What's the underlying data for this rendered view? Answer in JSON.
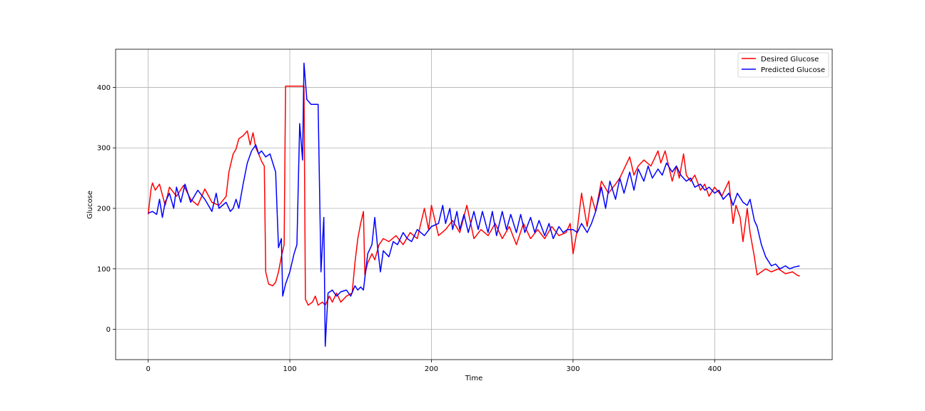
{
  "chart_data": {
    "type": "line",
    "xlabel": "Time",
    "ylabel": "Glucose",
    "xlim": [
      -23,
      483
    ],
    "ylim": [
      -50,
      463
    ],
    "xticks": [
      0,
      100,
      200,
      300,
      400
    ],
    "yticks": [
      0,
      100,
      200,
      300,
      400
    ],
    "grid": true,
    "legend_position": "top-right",
    "series": [
      {
        "name": "Desired Glucose",
        "color": "#ff0000",
        "points": [
          [
            0,
            190
          ],
          [
            2,
            232
          ],
          [
            3,
            242
          ],
          [
            5,
            230
          ],
          [
            8,
            240
          ],
          [
            12,
            205
          ],
          [
            15,
            235
          ],
          [
            20,
            220
          ],
          [
            25,
            238
          ],
          [
            30,
            215
          ],
          [
            35,
            205
          ],
          [
            40,
            232
          ],
          [
            45,
            210
          ],
          [
            50,
            205
          ],
          [
            55,
            220
          ],
          [
            57,
            260
          ],
          [
            60,
            290
          ],
          [
            62,
            298
          ],
          [
            64,
            315
          ],
          [
            67,
            320
          ],
          [
            70,
            328
          ],
          [
            72,
            305
          ],
          [
            74,
            325
          ],
          [
            76,
            300
          ],
          [
            78,
            290
          ],
          [
            80,
            278
          ],
          [
            82,
            270
          ],
          [
            83,
            95
          ],
          [
            85,
            75
          ],
          [
            88,
            72
          ],
          [
            90,
            78
          ],
          [
            92,
            95
          ],
          [
            94,
            120
          ],
          [
            96,
            140
          ],
          [
            97,
            402
          ],
          [
            100,
            402
          ],
          [
            105,
            402
          ],
          [
            108,
            402
          ],
          [
            110,
            402
          ],
          [
            111,
            50
          ],
          [
            113,
            40
          ],
          [
            116,
            45
          ],
          [
            118,
            55
          ],
          [
            120,
            40
          ],
          [
            123,
            45
          ],
          [
            125,
            40
          ],
          [
            128,
            55
          ],
          [
            130,
            45
          ],
          [
            133,
            60
          ],
          [
            136,
            45
          ],
          [
            140,
            55
          ],
          [
            144,
            60
          ],
          [
            146,
            110
          ],
          [
            148,
            150
          ],
          [
            150,
            175
          ],
          [
            152,
            195
          ],
          [
            153,
            90
          ],
          [
            155,
            110
          ],
          [
            158,
            125
          ],
          [
            160,
            115
          ],
          [
            163,
            140
          ],
          [
            166,
            150
          ],
          [
            170,
            145
          ],
          [
            175,
            155
          ],
          [
            180,
            140
          ],
          [
            185,
            160
          ],
          [
            190,
            150
          ],
          [
            195,
            200
          ],
          [
            198,
            165
          ],
          [
            200,
            205
          ],
          [
            205,
            155
          ],
          [
            210,
            165
          ],
          [
            215,
            180
          ],
          [
            220,
            160
          ],
          [
            225,
            205
          ],
          [
            230,
            150
          ],
          [
            235,
            165
          ],
          [
            240,
            155
          ],
          [
            245,
            175
          ],
          [
            250,
            150
          ],
          [
            255,
            170
          ],
          [
            260,
            140
          ],
          [
            265,
            175
          ],
          [
            270,
            150
          ],
          [
            275,
            165
          ],
          [
            280,
            150
          ],
          [
            285,
            170
          ],
          [
            290,
            155
          ],
          [
            295,
            160
          ],
          [
            298,
            175
          ],
          [
            300,
            125
          ],
          [
            303,
            165
          ],
          [
            306,
            225
          ],
          [
            310,
            170
          ],
          [
            313,
            220
          ],
          [
            316,
            195
          ],
          [
            320,
            245
          ],
          [
            325,
            225
          ],
          [
            330,
            240
          ],
          [
            333,
            250
          ],
          [
            336,
            265
          ],
          [
            340,
            285
          ],
          [
            343,
            255
          ],
          [
            346,
            270
          ],
          [
            350,
            280
          ],
          [
            355,
            270
          ],
          [
            358,
            285
          ],
          [
            360,
            295
          ],
          [
            362,
            275
          ],
          [
            365,
            295
          ],
          [
            370,
            245
          ],
          [
            373,
            270
          ],
          [
            375,
            250
          ],
          [
            378,
            290
          ],
          [
            380,
            255
          ],
          [
            383,
            245
          ],
          [
            386,
            255
          ],
          [
            390,
            230
          ],
          [
            393,
            240
          ],
          [
            396,
            220
          ],
          [
            400,
            235
          ],
          [
            405,
            220
          ],
          [
            410,
            245
          ],
          [
            413,
            175
          ],
          [
            415,
            205
          ],
          [
            418,
            185
          ],
          [
            420,
            145
          ],
          [
            423,
            200
          ],
          [
            425,
            160
          ],
          [
            428,
            120
          ],
          [
            430,
            90
          ],
          [
            433,
            95
          ],
          [
            436,
            100
          ],
          [
            440,
            95
          ],
          [
            445,
            100
          ],
          [
            450,
            92
          ],
          [
            455,
            95
          ],
          [
            458,
            90
          ],
          [
            460,
            88
          ]
        ]
      },
      {
        "name": "Predicted Glucose",
        "color": "#0000ff",
        "points": [
          [
            0,
            192
          ],
          [
            3,
            195
          ],
          [
            6,
            190
          ],
          [
            8,
            215
          ],
          [
            10,
            185
          ],
          [
            12,
            210
          ],
          [
            15,
            225
          ],
          [
            18,
            200
          ],
          [
            20,
            235
          ],
          [
            23,
            210
          ],
          [
            26,
            240
          ],
          [
            30,
            210
          ],
          [
            35,
            230
          ],
          [
            40,
            215
          ],
          [
            45,
            195
          ],
          [
            48,
            225
          ],
          [
            50,
            200
          ],
          [
            55,
            210
          ],
          [
            58,
            195
          ],
          [
            60,
            200
          ],
          [
            62,
            215
          ],
          [
            64,
            200
          ],
          [
            67,
            240
          ],
          [
            70,
            275
          ],
          [
            73,
            295
          ],
          [
            76,
            305
          ],
          [
            78,
            290
          ],
          [
            80,
            295
          ],
          [
            83,
            285
          ],
          [
            86,
            290
          ],
          [
            88,
            275
          ],
          [
            90,
            260
          ],
          [
            92,
            135
          ],
          [
            94,
            150
          ],
          [
            95,
            55
          ],
          [
            97,
            75
          ],
          [
            100,
            95
          ],
          [
            103,
            125
          ],
          [
            105,
            140
          ],
          [
            107,
            340
          ],
          [
            109,
            280
          ],
          [
            110,
            440
          ],
          [
            112,
            380
          ],
          [
            115,
            372
          ],
          [
            118,
            372
          ],
          [
            120,
            372
          ],
          [
            122,
            95
          ],
          [
            124,
            185
          ],
          [
            125,
            -28
          ],
          [
            127,
            60
          ],
          [
            130,
            65
          ],
          [
            133,
            55
          ],
          [
            136,
            62
          ],
          [
            140,
            65
          ],
          [
            143,
            55
          ],
          [
            146,
            72
          ],
          [
            148,
            65
          ],
          [
            150,
            70
          ],
          [
            152,
            65
          ],
          [
            155,
            125
          ],
          [
            158,
            140
          ],
          [
            160,
            185
          ],
          [
            162,
            135
          ],
          [
            164,
            95
          ],
          [
            166,
            130
          ],
          [
            170,
            120
          ],
          [
            173,
            145
          ],
          [
            176,
            140
          ],
          [
            180,
            160
          ],
          [
            183,
            150
          ],
          [
            186,
            145
          ],
          [
            190,
            165
          ],
          [
            195,
            155
          ],
          [
            200,
            170
          ],
          [
            205,
            175
          ],
          [
            208,
            205
          ],
          [
            210,
            175
          ],
          [
            213,
            200
          ],
          [
            215,
            165
          ],
          [
            218,
            195
          ],
          [
            220,
            165
          ],
          [
            223,
            190
          ],
          [
            226,
            160
          ],
          [
            230,
            195
          ],
          [
            233,
            165
          ],
          [
            236,
            195
          ],
          [
            240,
            160
          ],
          [
            243,
            195
          ],
          [
            246,
            155
          ],
          [
            250,
            195
          ],
          [
            253,
            165
          ],
          [
            256,
            190
          ],
          [
            260,
            160
          ],
          [
            263,
            190
          ],
          [
            266,
            160
          ],
          [
            270,
            185
          ],
          [
            273,
            160
          ],
          [
            276,
            180
          ],
          [
            280,
            155
          ],
          [
            283,
            175
          ],
          [
            286,
            150
          ],
          [
            290,
            170
          ],
          [
            293,
            160
          ],
          [
            296,
            165
          ],
          [
            300,
            165
          ],
          [
            303,
            160
          ],
          [
            306,
            175
          ],
          [
            310,
            160
          ],
          [
            313,
            175
          ],
          [
            316,
            195
          ],
          [
            320,
            235
          ],
          [
            323,
            200
          ],
          [
            326,
            245
          ],
          [
            330,
            215
          ],
          [
            333,
            250
          ],
          [
            336,
            225
          ],
          [
            340,
            260
          ],
          [
            343,
            230
          ],
          [
            346,
            265
          ],
          [
            350,
            245
          ],
          [
            353,
            270
          ],
          [
            356,
            250
          ],
          [
            360,
            265
          ],
          [
            363,
            255
          ],
          [
            366,
            275
          ],
          [
            370,
            260
          ],
          [
            373,
            270
          ],
          [
            376,
            255
          ],
          [
            380,
            245
          ],
          [
            383,
            250
          ],
          [
            386,
            235
          ],
          [
            390,
            240
          ],
          [
            393,
            230
          ],
          [
            396,
            235
          ],
          [
            400,
            225
          ],
          [
            403,
            230
          ],
          [
            406,
            215
          ],
          [
            410,
            225
          ],
          [
            413,
            205
          ],
          [
            416,
            225
          ],
          [
            420,
            210
          ],
          [
            423,
            205
          ],
          [
            425,
            215
          ],
          [
            428,
            180
          ],
          [
            430,
            170
          ],
          [
            433,
            140
          ],
          [
            436,
            120
          ],
          [
            440,
            105
          ],
          [
            443,
            108
          ],
          [
            446,
            100
          ],
          [
            450,
            105
          ],
          [
            453,
            100
          ],
          [
            456,
            103
          ],
          [
            460,
            105
          ]
        ]
      }
    ]
  }
}
